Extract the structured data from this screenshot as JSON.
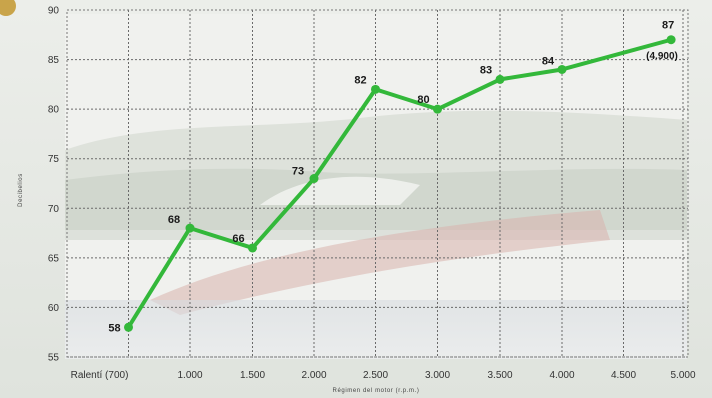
{
  "chart_data": {
    "type": "line",
    "title": "",
    "xlabel": "Régimen del motor (r.p.m.)",
    "ylabel": "Decibelios",
    "x_ticks": [
      "Ralentí (700)",
      "1.000",
      "1.500",
      "2.000",
      "2.500",
      "3.000",
      "3.500",
      "4.000",
      "4.500",
      "5.000"
    ],
    "x_range": [
      700,
      5000
    ],
    "y_ticks": [
      55,
      60,
      65,
      70,
      75,
      80,
      85,
      90
    ],
    "ylim": [
      55,
      90
    ],
    "grid": true,
    "series": [
      {
        "color": "#33b83a",
        "points": [
          {
            "x": 700,
            "y": 58,
            "label": "58"
          },
          {
            "x": 1000,
            "y": 68,
            "label": "68"
          },
          {
            "x": 1500,
            "y": 66,
            "label": "66"
          },
          {
            "x": 2000,
            "y": 73,
            "label": "73"
          },
          {
            "x": 2500,
            "y": 82,
            "label": "82"
          },
          {
            "x": 3000,
            "y": 80,
            "label": "80"
          },
          {
            "x": 3500,
            "y": 83,
            "label": "83"
          },
          {
            "x": 4000,
            "y": 84,
            "label": "84"
          },
          {
            "x": 4900,
            "y": 87,
            "label": "87"
          }
        ]
      }
    ],
    "annotation": "(4.900)"
  }
}
